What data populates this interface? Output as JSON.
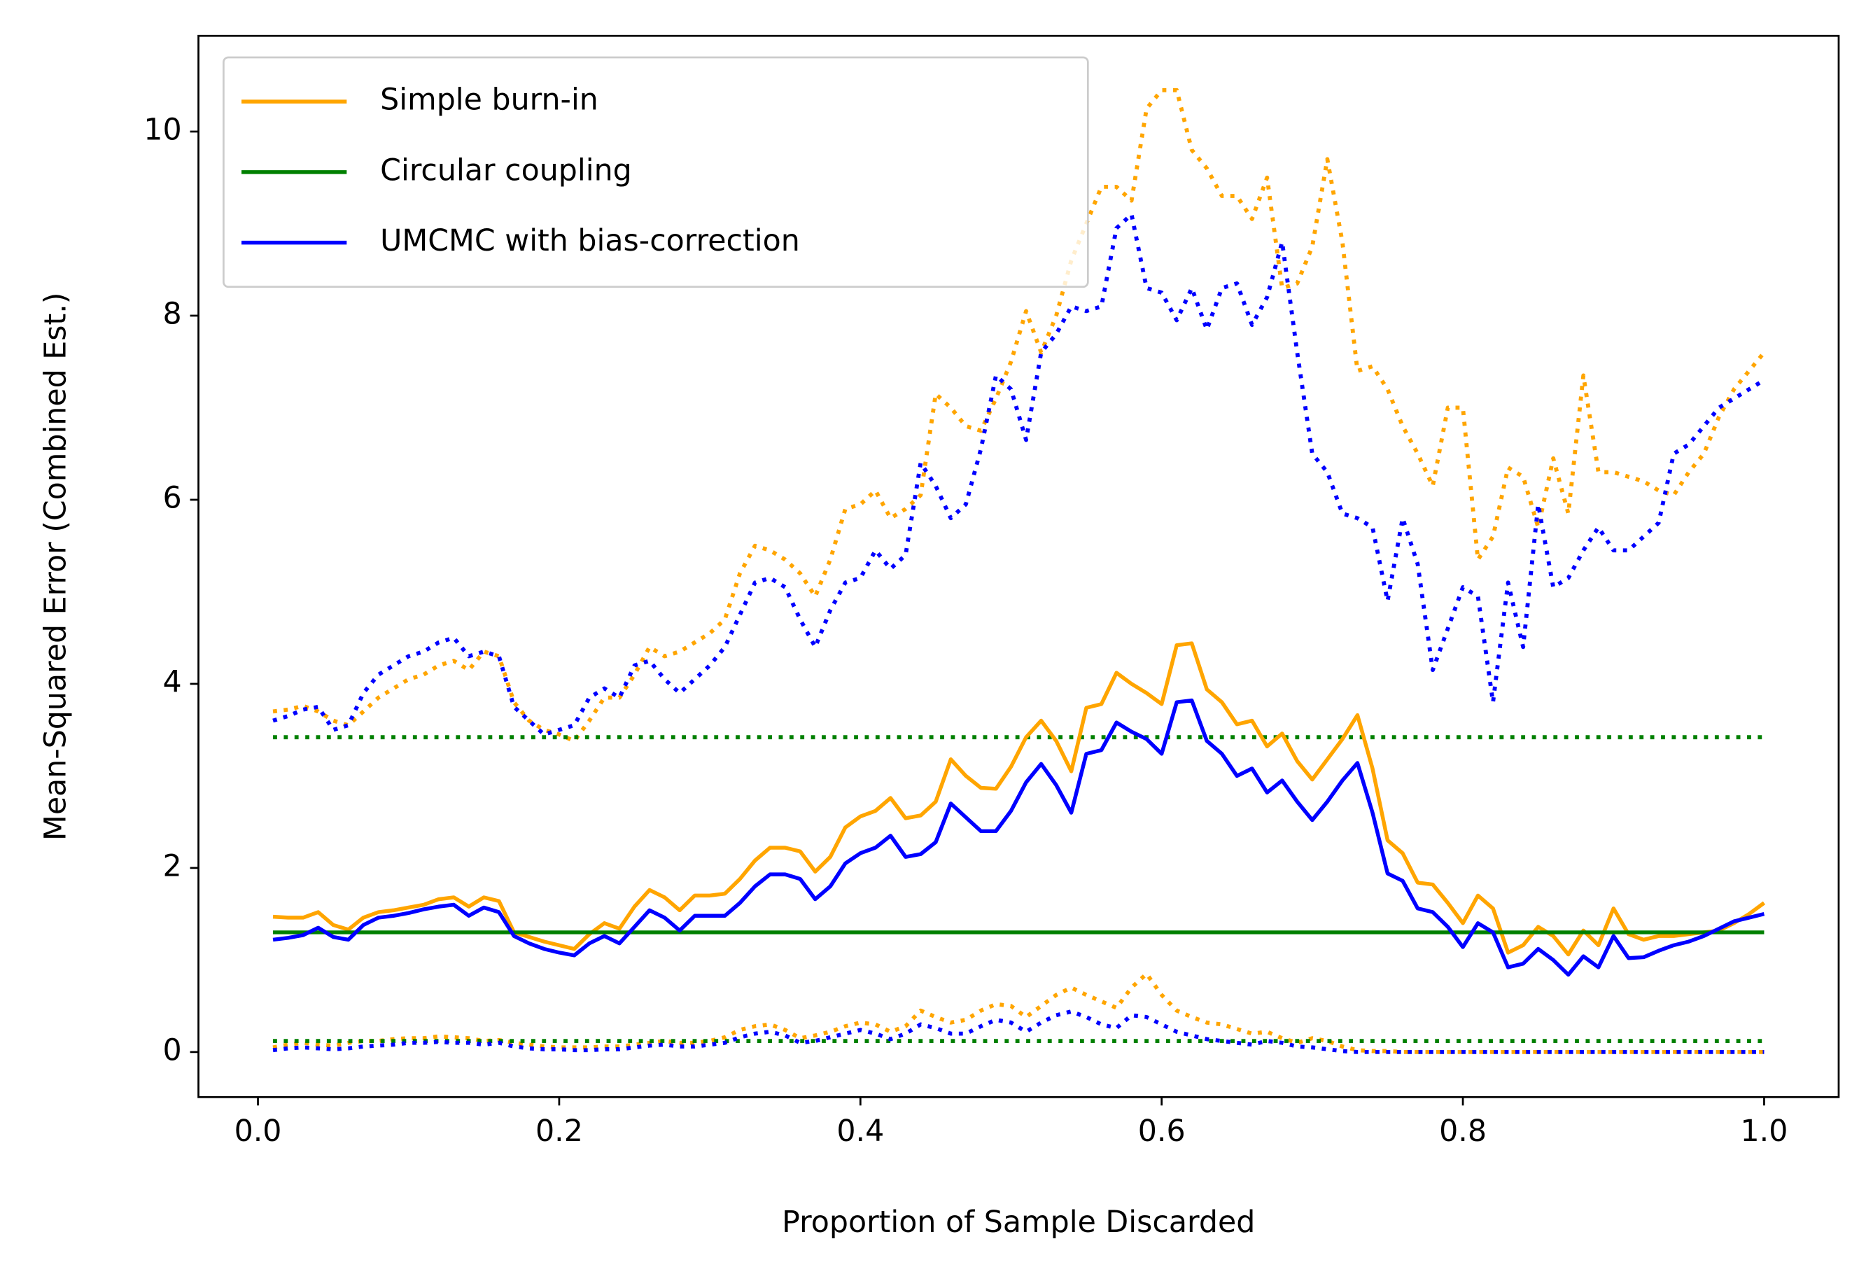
{
  "chart_data": {
    "type": "line",
    "xlabel": "Proportion of Sample Discarded",
    "ylabel": "Mean-Squared Error (Combined Est.)",
    "xlim": [
      -0.0395,
      1.0495
    ],
    "ylim": [
      -0.49,
      11.04
    ],
    "xticks": [
      {
        "value": 0,
        "label": "0.0"
      },
      {
        "value": 0.2,
        "label": "0.2"
      },
      {
        "value": 0.4,
        "label": "0.4"
      },
      {
        "value": 0.6,
        "label": "0.6"
      },
      {
        "value": 0.8,
        "label": "0.8"
      },
      {
        "value": 1,
        "label": "1.0"
      }
    ],
    "yticks": [
      0,
      2,
      4,
      6,
      8,
      10
    ],
    "legend": "upper left",
    "x": [
      0.01,
      0.02,
      0.03,
      0.04,
      0.05,
      0.06,
      0.07,
      0.08,
      0.09,
      0.1,
      0.11,
      0.12,
      0.13,
      0.14,
      0.15,
      0.16,
      0.17,
      0.18,
      0.19,
      0.2,
      0.21,
      0.22,
      0.23,
      0.24,
      0.25,
      0.26,
      0.27,
      0.28,
      0.29,
      0.3,
      0.31,
      0.32,
      0.33,
      0.34,
      0.35,
      0.36,
      0.37,
      0.38,
      0.39,
      0.4,
      0.41,
      0.42,
      0.43,
      0.44,
      0.45,
      0.46,
      0.47,
      0.48,
      0.49,
      0.5,
      0.51,
      0.52,
      0.53,
      0.54,
      0.55,
      0.56,
      0.57,
      0.58,
      0.59,
      0.6,
      0.61,
      0.62,
      0.63,
      0.64,
      0.65,
      0.66,
      0.67,
      0.68,
      0.69,
      0.7,
      0.71,
      0.72,
      0.73,
      0.74,
      0.75,
      0.76,
      0.77,
      0.78,
      0.79,
      0.8,
      0.81,
      0.82,
      0.83,
      0.84,
      0.85,
      0.86,
      0.87,
      0.88,
      0.89,
      0.9,
      0.91,
      0.92,
      0.93,
      0.94,
      0.95,
      0.96,
      0.97,
      0.98,
      0.99,
      1
    ],
    "series": [
      {
        "name": "Simple burn-in",
        "color": "#ffa500",
        "values": [
          1.47,
          1.46,
          1.46,
          1.52,
          1.38,
          1.33,
          1.46,
          1.52,
          1.54,
          1.57,
          1.6,
          1.66,
          1.68,
          1.58,
          1.68,
          1.64,
          1.3,
          1.25,
          1.2,
          1.16,
          1.12,
          1.28,
          1.4,
          1.34,
          1.58,
          1.76,
          1.68,
          1.54,
          1.7,
          1.7,
          1.72,
          1.88,
          2.08,
          2.22,
          2.22,
          2.18,
          1.96,
          2.12,
          2.44,
          2.56,
          2.62,
          2.76,
          2.54,
          2.57,
          2.72,
          3.18,
          3.0,
          2.87,
          2.86,
          3.1,
          3.42,
          3.6,
          3.38,
          3.05,
          3.74,
          3.78,
          4.12,
          4.0,
          3.9,
          3.78,
          4.42,
          4.44,
          3.94,
          3.8,
          3.56,
          3.6,
          3.32,
          3.46,
          3.16,
          2.96,
          3.18,
          3.4,
          3.66,
          3.08,
          2.3,
          2.16,
          1.84,
          1.82,
          1.62,
          1.4,
          1.7,
          1.56,
          1.08,
          1.16,
          1.36,
          1.26,
          1.06,
          1.32,
          1.16,
          1.56,
          1.28,
          1.22,
          1.26,
          1.26,
          1.28,
          1.3,
          1.32,
          1.4,
          1.5,
          1.62
        ],
        "upper": [
          3.7,
          3.72,
          3.76,
          3.7,
          3.6,
          3.55,
          3.7,
          3.85,
          3.95,
          4.05,
          4.1,
          4.2,
          4.25,
          4.15,
          4.35,
          4.3,
          3.8,
          3.6,
          3.5,
          3.45,
          3.38,
          3.6,
          3.85,
          3.85,
          4.1,
          4.4,
          4.3,
          4.35,
          4.45,
          4.55,
          4.7,
          5.2,
          5.5,
          5.45,
          5.35,
          5.2,
          4.95,
          5.35,
          5.9,
          5.95,
          6.1,
          5.8,
          5.9,
          6.05,
          7.15,
          7.0,
          6.8,
          6.75,
          7.1,
          7.5,
          8.05,
          7.6,
          8.0,
          8.6,
          9.0,
          9.4,
          9.4,
          9.25,
          10.25,
          10.45,
          10.45,
          9.8,
          9.6,
          9.3,
          9.3,
          9.05,
          9.5,
          8.3,
          8.35,
          8.75,
          9.7,
          8.8,
          7.4,
          7.45,
          7.2,
          6.8,
          6.5,
          6.15,
          7.0,
          7.0,
          5.35,
          5.6,
          6.35,
          6.25,
          5.7,
          6.45,
          5.85,
          7.35,
          6.3,
          6.3,
          6.25,
          6.2,
          6.1,
          6.05,
          6.3,
          6.5,
          6.9,
          7.2,
          7.4,
          7.6
        ],
        "lower": [
          0.05,
          0.08,
          0.1,
          0.08,
          0.07,
          0.1,
          0.12,
          0.12,
          0.14,
          0.15,
          0.15,
          0.17,
          0.16,
          0.15,
          0.12,
          0.13,
          0.1,
          0.08,
          0.06,
          0.05,
          0.05,
          0.05,
          0.06,
          0.06,
          0.08,
          0.1,
          0.12,
          0.1,
          0.1,
          0.12,
          0.16,
          0.24,
          0.28,
          0.3,
          0.24,
          0.15,
          0.18,
          0.22,
          0.28,
          0.32,
          0.3,
          0.22,
          0.28,
          0.45,
          0.38,
          0.32,
          0.35,
          0.45,
          0.52,
          0.5,
          0.38,
          0.5,
          0.62,
          0.7,
          0.62,
          0.55,
          0.48,
          0.7,
          0.85,
          0.62,
          0.45,
          0.38,
          0.32,
          0.3,
          0.25,
          0.2,
          0.22,
          0.15,
          0.1,
          0.15,
          0.12,
          0.06,
          0.02,
          0.01,
          0.01,
          0,
          0,
          0,
          0,
          0,
          0,
          0,
          0,
          0,
          0,
          0,
          0,
          0,
          0,
          0,
          0,
          0,
          0,
          0,
          0,
          0,
          0,
          0,
          0,
          0
        ]
      },
      {
        "name": "Circular coupling",
        "color": "#008000",
        "values": [
          1.3,
          1.3,
          1.3,
          1.3,
          1.3,
          1.3,
          1.3,
          1.3,
          1.3,
          1.3,
          1.3,
          1.3,
          1.3,
          1.3,
          1.3,
          1.3,
          1.3,
          1.3,
          1.3,
          1.3,
          1.3,
          1.3,
          1.3,
          1.3,
          1.3,
          1.3,
          1.3,
          1.3,
          1.3,
          1.3,
          1.3,
          1.3,
          1.3,
          1.3,
          1.3,
          1.3,
          1.3,
          1.3,
          1.3,
          1.3,
          1.3,
          1.3,
          1.3,
          1.3,
          1.3,
          1.3,
          1.3,
          1.3,
          1.3,
          1.3,
          1.3,
          1.3,
          1.3,
          1.3,
          1.3,
          1.3,
          1.3,
          1.3,
          1.3,
          1.3,
          1.3,
          1.3,
          1.3,
          1.3,
          1.3,
          1.3,
          1.3,
          1.3,
          1.3,
          1.3,
          1.3,
          1.3,
          1.3,
          1.3,
          1.3,
          1.3,
          1.3,
          1.3,
          1.3,
          1.3,
          1.3,
          1.3,
          1.3,
          1.3,
          1.3,
          1.3,
          1.3,
          1.3,
          1.3,
          1.3,
          1.3,
          1.3,
          1.3,
          1.3,
          1.3,
          1.3,
          1.3,
          1.3,
          1.3,
          1.3
        ],
        "upper": [
          3.42,
          3.42,
          3.42,
          3.42,
          3.42,
          3.42,
          3.42,
          3.42,
          3.42,
          3.42,
          3.42,
          3.42,
          3.42,
          3.42,
          3.42,
          3.42,
          3.42,
          3.42,
          3.42,
          3.42,
          3.42,
          3.42,
          3.42,
          3.42,
          3.42,
          3.42,
          3.42,
          3.42,
          3.42,
          3.42,
          3.42,
          3.42,
          3.42,
          3.42,
          3.42,
          3.42,
          3.42,
          3.42,
          3.42,
          3.42,
          3.42,
          3.42,
          3.42,
          3.42,
          3.42,
          3.42,
          3.42,
          3.42,
          3.42,
          3.42,
          3.42,
          3.42,
          3.42,
          3.42,
          3.42,
          3.42,
          3.42,
          3.42,
          3.42,
          3.42,
          3.42,
          3.42,
          3.42,
          3.42,
          3.42,
          3.42,
          3.42,
          3.42,
          3.42,
          3.42,
          3.42,
          3.42,
          3.42,
          3.42,
          3.42,
          3.42,
          3.42,
          3.42,
          3.42,
          3.42,
          3.42,
          3.42,
          3.42,
          3.42,
          3.42,
          3.42,
          3.42,
          3.42,
          3.42,
          3.42,
          3.42,
          3.42,
          3.42,
          3.42,
          3.42,
          3.42,
          3.42,
          3.42,
          3.42,
          3.42
        ],
        "lower": [
          0.12,
          0.12,
          0.12,
          0.12,
          0.12,
          0.12,
          0.12,
          0.12,
          0.12,
          0.12,
          0.12,
          0.12,
          0.12,
          0.12,
          0.12,
          0.12,
          0.12,
          0.12,
          0.12,
          0.12,
          0.12,
          0.12,
          0.12,
          0.12,
          0.12,
          0.12,
          0.12,
          0.12,
          0.12,
          0.12,
          0.12,
          0.12,
          0.12,
          0.12,
          0.12,
          0.12,
          0.12,
          0.12,
          0.12,
          0.12,
          0.12,
          0.12,
          0.12,
          0.12,
          0.12,
          0.12,
          0.12,
          0.12,
          0.12,
          0.12,
          0.12,
          0.12,
          0.12,
          0.12,
          0.12,
          0.12,
          0.12,
          0.12,
          0.12,
          0.12,
          0.12,
          0.12,
          0.12,
          0.12,
          0.12,
          0.12,
          0.12,
          0.12,
          0.12,
          0.12,
          0.12,
          0.12,
          0.12,
          0.12,
          0.12,
          0.12,
          0.12,
          0.12,
          0.12,
          0.12,
          0.12,
          0.12,
          0.12,
          0.12,
          0.12,
          0.12,
          0.12,
          0.12,
          0.12,
          0.12,
          0.12,
          0.12,
          0.12,
          0.12,
          0.12,
          0.12,
          0.12,
          0.12,
          0.12,
          0.12
        ]
      },
      {
        "name": "UMCMC with bias-correction",
        "color": "#0000ff",
        "values": [
          1.22,
          1.24,
          1.27,
          1.35,
          1.25,
          1.22,
          1.38,
          1.46,
          1.48,
          1.51,
          1.55,
          1.58,
          1.6,
          1.48,
          1.57,
          1.52,
          1.26,
          1.18,
          1.12,
          1.08,
          1.05,
          1.18,
          1.26,
          1.18,
          1.36,
          1.54,
          1.46,
          1.32,
          1.48,
          1.48,
          1.48,
          1.62,
          1.8,
          1.93,
          1.93,
          1.88,
          1.66,
          1.8,
          2.05,
          2.16,
          2.22,
          2.35,
          2.12,
          2.15,
          2.28,
          2.7,
          2.55,
          2.4,
          2.4,
          2.62,
          2.93,
          3.13,
          2.9,
          2.6,
          3.24,
          3.28,
          3.58,
          3.48,
          3.4,
          3.24,
          3.8,
          3.82,
          3.38,
          3.24,
          3.0,
          3.08,
          2.82,
          2.95,
          2.72,
          2.52,
          2.72,
          2.95,
          3.14,
          2.6,
          1.94,
          1.86,
          1.56,
          1.52,
          1.36,
          1.14,
          1.4,
          1.3,
          0.92,
          0.96,
          1.12,
          1.0,
          0.84,
          1.04,
          0.92,
          1.26,
          1.02,
          1.03,
          1.1,
          1.16,
          1.2,
          1.26,
          1.34,
          1.42,
          1.46,
          1.5
        ],
        "upper": [
          3.6,
          3.65,
          3.72,
          3.75,
          3.5,
          3.55,
          3.9,
          4.1,
          4.2,
          4.3,
          4.35,
          4.45,
          4.5,
          4.3,
          4.35,
          4.3,
          3.75,
          3.6,
          3.45,
          3.5,
          3.55,
          3.85,
          3.95,
          3.85,
          4.2,
          4.25,
          4.05,
          3.9,
          4.05,
          4.2,
          4.4,
          4.75,
          5.1,
          5.15,
          5.05,
          4.7,
          4.4,
          4.8,
          5.1,
          5.15,
          5.45,
          5.25,
          5.4,
          6.4,
          6.15,
          5.8,
          5.95,
          6.55,
          7.35,
          7.2,
          6.65,
          7.6,
          7.8,
          8.1,
          8.05,
          8.1,
          8.95,
          9.1,
          8.3,
          8.25,
          7.95,
          8.3,
          7.85,
          8.3,
          8.35,
          7.9,
          8.2,
          8.8,
          7.6,
          6.5,
          6.3,
          5.85,
          5.8,
          5.7,
          4.9,
          5.8,
          5.3,
          4.15,
          4.6,
          5.05,
          4.95,
          3.8,
          5.1,
          4.4,
          5.95,
          5.05,
          5.15,
          5.45,
          5.7,
          5.45,
          5.45,
          5.6,
          5.75,
          6.5,
          6.6,
          6.8,
          7.0,
          7.1,
          7.2,
          7.3
        ],
        "lower": [
          0.02,
          0.04,
          0.05,
          0.04,
          0.03,
          0.04,
          0.06,
          0.07,
          0.08,
          0.1,
          0.1,
          0.11,
          0.1,
          0.1,
          0.08,
          0.1,
          0.06,
          0.04,
          0.03,
          0.03,
          0.02,
          0.02,
          0.03,
          0.03,
          0.05,
          0.07,
          0.08,
          0.06,
          0.06,
          0.08,
          0.1,
          0.16,
          0.2,
          0.22,
          0.18,
          0.1,
          0.12,
          0.16,
          0.2,
          0.24,
          0.2,
          0.14,
          0.2,
          0.3,
          0.26,
          0.2,
          0.2,
          0.28,
          0.35,
          0.32,
          0.22,
          0.32,
          0.4,
          0.44,
          0.38,
          0.3,
          0.26,
          0.4,
          0.38,
          0.3,
          0.22,
          0.18,
          0.14,
          0.12,
          0.1,
          0.08,
          0.12,
          0.1,
          0.06,
          0.05,
          0.03,
          0.01,
          0,
          0,
          0,
          0,
          0,
          0,
          0,
          0,
          0,
          0,
          0,
          0,
          0,
          0,
          0,
          0,
          0,
          0,
          0,
          0,
          0,
          0,
          0,
          0,
          0,
          0,
          0,
          0
        ]
      }
    ]
  }
}
